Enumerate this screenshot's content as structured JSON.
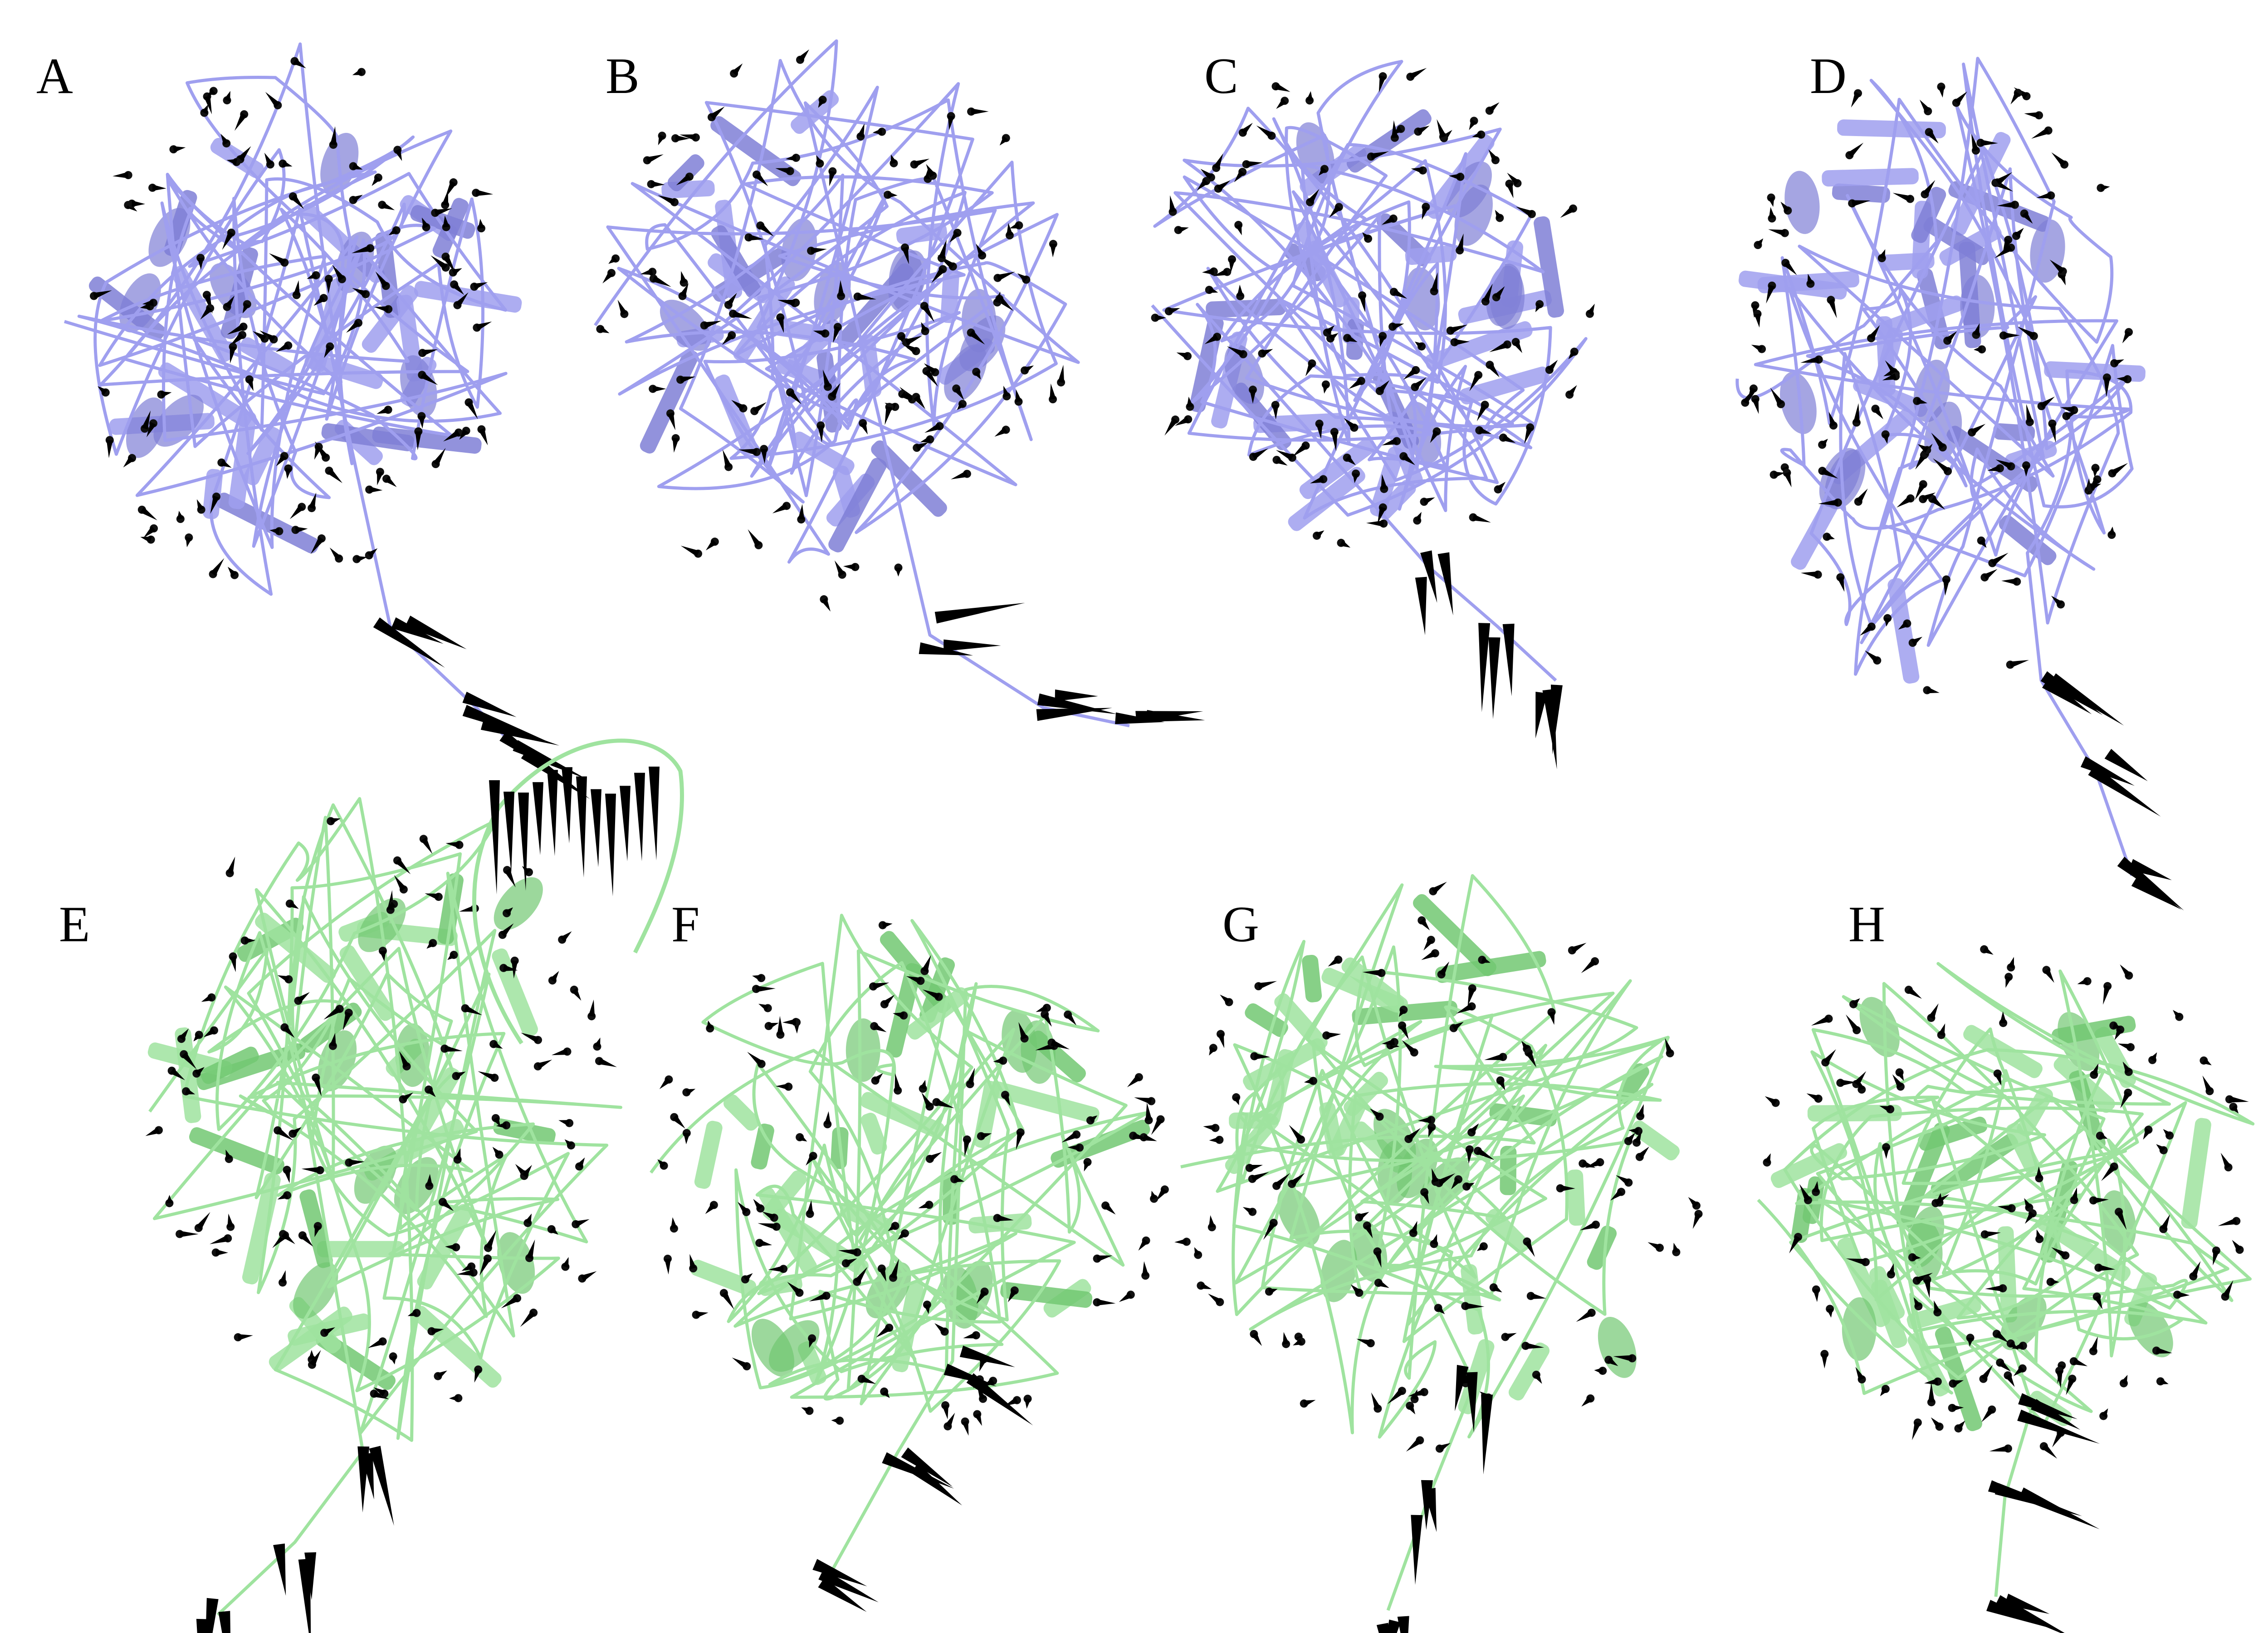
{
  "figure": {
    "colors": {
      "background": "#ffffff",
      "top_row_structure": "#9f9fef",
      "top_row_structure_dark": "#7f7fd6",
      "bottom_row_structure": "#9fe39f",
      "bottom_row_structure_dark": "#72c872",
      "vector_arrows": "#000000",
      "residue_beads": "#111111"
    },
    "panels": [
      {
        "label": "A",
        "row": "top"
      },
      {
        "label": "B",
        "row": "top"
      },
      {
        "label": "C",
        "row": "top"
      },
      {
        "label": "D",
        "row": "top"
      },
      {
        "label": "E",
        "row": "bottom"
      },
      {
        "label": "F",
        "row": "bottom"
      },
      {
        "label": "G",
        "row": "bottom"
      },
      {
        "label": "H",
        "row": "bottom"
      }
    ]
  }
}
